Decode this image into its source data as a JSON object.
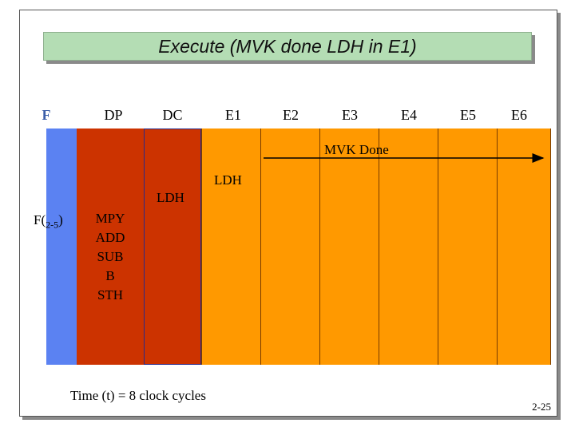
{
  "title": "Execute (MVK done LDH in E1)",
  "stages": [
    "F",
    "DP",
    "DC",
    "E1",
    "E2",
    "E3",
    "E4",
    "E5",
    "E6"
  ],
  "mvk_done": "MVK Done",
  "ldh_e1": "LDH",
  "ldh_dc": "LDH",
  "fetch_label": {
    "main": "F(",
    "sub": "2-5",
    "close": ")"
  },
  "dp_packet": [
    "MPY",
    "ADD",
    "SUB",
    "B",
    "STH"
  ],
  "time_label": "Time (t) = 8 clock cycles",
  "page_number": "2-25",
  "colors": {
    "fetch": "#5b82f2",
    "decode": "#cc3300",
    "execute": "#ff9900",
    "title_bg": "#b4ddb4"
  }
}
